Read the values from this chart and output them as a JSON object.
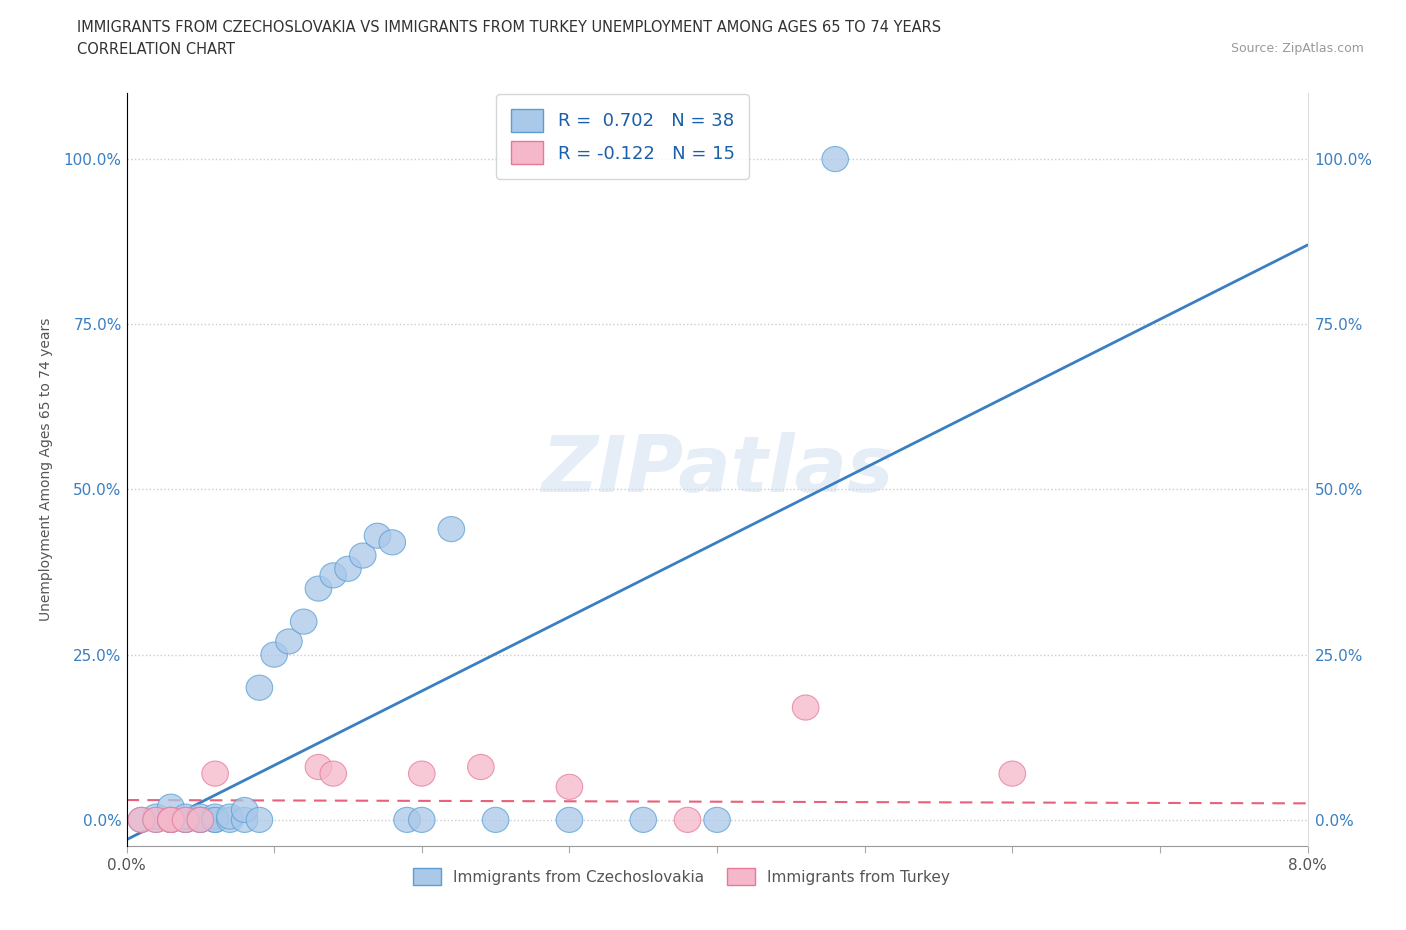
{
  "title_line1": "IMMIGRANTS FROM CZECHOSLOVAKIA VS IMMIGRANTS FROM TURKEY UNEMPLOYMENT AMONG AGES 65 TO 74 YEARS",
  "title_line2": "CORRELATION CHART",
  "source": "Source: ZipAtlas.com",
  "ylabel": "Unemployment Among Ages 65 to 74 years",
  "xlim": [
    0.0,
    0.08
  ],
  "ylim": [
    -0.04,
    1.1
  ],
  "yticks": [
    0.0,
    0.25,
    0.5,
    0.75,
    1.0
  ],
  "ytick_labels": [
    "0.0%",
    "25.0%",
    "50.0%",
    "75.0%",
    "100.0%"
  ],
  "xtick_positions": [
    0.0,
    0.01,
    0.02,
    0.03,
    0.04,
    0.05,
    0.06,
    0.07,
    0.08
  ],
  "xtick_labels": [
    "0.0%",
    "",
    "",
    "",
    "",
    "",
    "",
    "",
    "8.0%"
  ],
  "legend1_label": "R =  0.702   N = 38",
  "legend2_label": "R = -0.122   N = 15",
  "czech_color": "#aac8e8",
  "turkey_color": "#f5b8ca",
  "czech_edge_color": "#5a9fd4",
  "turkey_edge_color": "#e87898",
  "czech_line_color": "#3a7fc1",
  "turkey_line_color": "#e8607a",
  "background_color": "#ffffff",
  "czech_scatter_x": [
    0.001,
    0.002,
    0.002,
    0.003,
    0.003,
    0.003,
    0.004,
    0.004,
    0.004,
    0.005,
    0.005,
    0.005,
    0.006,
    0.006,
    0.006,
    0.007,
    0.007,
    0.008,
    0.008,
    0.009,
    0.009,
    0.01,
    0.011,
    0.012,
    0.013,
    0.014,
    0.015,
    0.016,
    0.017,
    0.018,
    0.019,
    0.02,
    0.022,
    0.025,
    0.03,
    0.035,
    0.04,
    0.048
  ],
  "czech_scatter_y": [
    0.0,
    0.0,
    0.005,
    0.0,
    0.0,
    0.02,
    0.0,
    0.0,
    0.005,
    0.0,
    0.005,
    0.0,
    0.0,
    0.005,
    0.0,
    0.0,
    0.005,
    0.0,
    0.015,
    0.2,
    0.0,
    0.25,
    0.27,
    0.3,
    0.35,
    0.37,
    0.38,
    0.4,
    0.43,
    0.42,
    0.0,
    0.0,
    0.44,
    0.0,
    0.0,
    0.0,
    0.0,
    1.0
  ],
  "turkey_scatter_x": [
    0.001,
    0.002,
    0.003,
    0.003,
    0.004,
    0.005,
    0.006,
    0.013,
    0.014,
    0.02,
    0.024,
    0.03,
    0.038,
    0.046,
    0.06
  ],
  "turkey_scatter_y": [
    0.0,
    0.0,
    0.0,
    0.0,
    0.0,
    0.0,
    0.07,
    0.08,
    0.07,
    0.07,
    0.08,
    0.05,
    0.0,
    0.17,
    0.07
  ],
  "czech_line_x0": 0.0,
  "czech_line_y0": -0.03,
  "czech_line_x1": 0.08,
  "czech_line_y1": 0.87,
  "turkey_line_x0": 0.0,
  "turkey_line_y0": 0.03,
  "turkey_line_x1": 0.08,
  "turkey_line_y1": 0.025
}
